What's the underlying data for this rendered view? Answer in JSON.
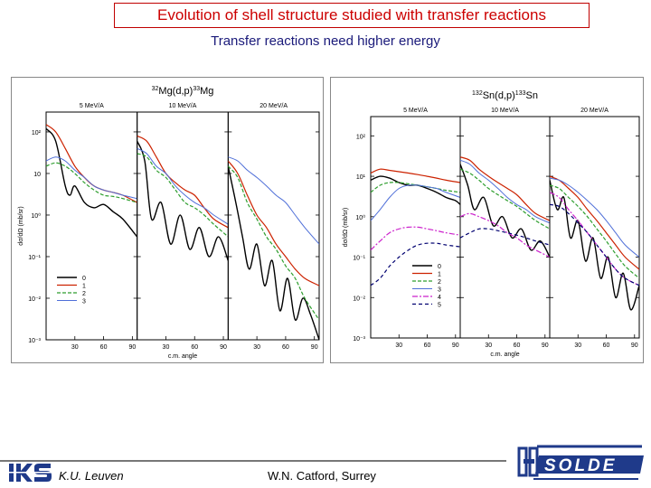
{
  "header": {
    "title": "Evolution of shell structure studied with transfer reactions",
    "subtitle": "Transfer reactions need higher energy"
  },
  "footer": {
    "institution": "K.U. Leuven",
    "author": "W.N. Catford, Surrey",
    "logo_left_text": "IKS",
    "logo_right_text": "ISOLDE"
  },
  "colors": {
    "l0": "#000000",
    "l1": "#cc2200",
    "l2": "#2e9e2e",
    "l3": "#4f6fd8",
    "l4": "#cc22cc",
    "l5": "#000070",
    "title": "#cc0000",
    "subtitle": "#1a1a7a"
  },
  "chart_data": [
    {
      "type": "line",
      "title": "32Mg(d,p)33Mg",
      "title_parts": {
        "mass_a": "32",
        "element_a": "Mg(d,p)",
        "mass_b": "33",
        "element_b": "Mg"
      },
      "xlabel": "c.m. angle",
      "ylabel": "dσ/dΩ (mb/sr)",
      "y_scale": "log",
      "ylim": [
        0.001,
        300
      ],
      "yticks": [
        "10²",
        "10",
        "10⁰",
        "10⁻¹",
        "10⁻²",
        "10⁻³"
      ],
      "yticks_values": [
        100,
        10,
        1,
        0.1,
        0.01,
        0.001
      ],
      "xlim": [
        0,
        95
      ],
      "xticks": [
        "30",
        "60",
        "90"
      ],
      "legend": {
        "placement": "lower-left",
        "entries": [
          "0",
          "1",
          "2",
          "3"
        ]
      },
      "subpanels": [
        {
          "label": "5 MeV/A",
          "series": [
            {
              "name": "0",
              "x": [
                0,
                10,
                20,
                25,
                30,
                40,
                50,
                60,
                70,
                80,
                95
              ],
              "y": [
                120,
                60,
                5,
                3,
                5,
                2,
                1.5,
                1.8,
                1.2,
                0.8,
                0.3
              ]
            },
            {
              "name": "1",
              "x": [
                0,
                10,
                20,
                30,
                40,
                50,
                60,
                70,
                80,
                95
              ],
              "y": [
                150,
                100,
                40,
                15,
                8,
                5,
                4,
                3.5,
                3,
                2
              ]
            },
            {
              "name": "2",
              "x": [
                0,
                10,
                20,
                30,
                40,
                50,
                60,
                70,
                80,
                95
              ],
              "y": [
                15,
                18,
                15,
                10,
                6,
                4,
                3,
                2.8,
                2.5,
                2
              ]
            },
            {
              "name": "3",
              "x": [
                0,
                10,
                20,
                30,
                40,
                50,
                60,
                70,
                80,
                95
              ],
              "y": [
                20,
                25,
                20,
                12,
                8,
                5,
                4,
                3.5,
                3,
                2.5
              ]
            }
          ]
        },
        {
          "label": "10 MeV/A",
          "series": [
            {
              "name": "0",
              "x": [
                0,
                8,
                15,
                25,
                35,
                45,
                55,
                65,
                75,
                85,
                95
              ],
              "y": [
                60,
                20,
                0.8,
                2,
                0.2,
                1,
                0.15,
                0.5,
                0.1,
                0.3,
                0.08
              ]
            },
            {
              "name": "1",
              "x": [
                0,
                10,
                20,
                30,
                40,
                50,
                60,
                70,
                80,
                95
              ],
              "y": [
                80,
                60,
                25,
                10,
                6,
                4,
                3,
                1.5,
                0.8,
                0.5
              ]
            },
            {
              "name": "2",
              "x": [
                0,
                10,
                20,
                30,
                40,
                50,
                60,
                70,
                80,
                95
              ],
              "y": [
                30,
                25,
                12,
                8,
                4,
                2,
                1.5,
                1,
                0.6,
                0.3
              ]
            },
            {
              "name": "3",
              "x": [
                0,
                10,
                20,
                30,
                40,
                50,
                60,
                70,
                80,
                95
              ],
              "y": [
                40,
                30,
                15,
                10,
                5,
                3,
                2,
                1.5,
                1,
                0.6
              ]
            }
          ]
        },
        {
          "label": "20 MeV/A",
          "series": [
            {
              "name": "0",
              "x": [
                0,
                8,
                15,
                22,
                30,
                38,
                46,
                54,
                62,
                70,
                78,
                86,
                95
              ],
              "y": [
                15,
                2,
                0.3,
                0.05,
                0.2,
                0.02,
                0.08,
                0.005,
                0.03,
                0.003,
                0.01,
                0.004,
                0.001
              ]
            },
            {
              "name": "1",
              "x": [
                0,
                10,
                20,
                30,
                40,
                50,
                60,
                70,
                80,
                95
              ],
              "y": [
                20,
                10,
                3,
                1,
                0.5,
                0.2,
                0.1,
                0.05,
                0.03,
                0.02
              ]
            },
            {
              "name": "2",
              "x": [
                0,
                10,
                20,
                30,
                40,
                50,
                60,
                70,
                80,
                95
              ],
              "y": [
                15,
                8,
                2,
                0.8,
                0.3,
                0.15,
                0.06,
                0.03,
                0.01,
                0.003
              ]
            },
            {
              "name": "3",
              "x": [
                0,
                10,
                20,
                30,
                40,
                50,
                60,
                70,
                80,
                95
              ],
              "y": [
                25,
                20,
                12,
                8,
                5,
                3,
                2,
                1,
                0.5,
                0.2
              ]
            }
          ]
        }
      ]
    },
    {
      "type": "line",
      "title": "132Sn(d,p)133Sn",
      "title_parts": {
        "mass_a": "132",
        "element_a": "Sn(d,p)",
        "mass_b": "133",
        "element_b": "Sn"
      },
      "xlabel": "c.m. angle",
      "ylabel": "dσ/dΩ (mb/sr)",
      "y_scale": "log",
      "ylim": [
        0.001,
        300
      ],
      "yticks": [
        "10²",
        "10¹",
        "10⁰",
        "10⁻¹",
        "10⁻²",
        "10⁻³"
      ],
      "yticks_values": [
        100,
        10,
        1,
        0.1,
        0.01,
        0.001
      ],
      "xlim": [
        0,
        95
      ],
      "xticks": [
        "30",
        "60",
        "90"
      ],
      "legend": {
        "placement": "lower-right",
        "entries": [
          "0",
          "1",
          "2",
          "3",
          "4",
          "5"
        ]
      },
      "subpanels": [
        {
          "label": "5 MeV/A",
          "series": [
            {
              "name": "0",
              "x": [
                0,
                10,
                20,
                30,
                40,
                50,
                60,
                70,
                80,
                90,
                95
              ],
              "y": [
                8,
                10,
                9,
                7,
                6,
                6,
                5,
                4,
                3,
                2.5,
                2
              ]
            },
            {
              "name": "1",
              "x": [
                0,
                10,
                20,
                30,
                40,
                50,
                60,
                70,
                80,
                95
              ],
              "y": [
                12,
                15,
                14,
                13,
                12,
                11,
                10,
                9,
                8,
                7
              ]
            },
            {
              "name": "2",
              "x": [
                0,
                10,
                20,
                30,
                40,
                50,
                60,
                70,
                80,
                95
              ],
              "y": [
                4,
                6,
                7,
                7,
                6.5,
                6,
                5.5,
                5,
                4.5,
                4
              ]
            },
            {
              "name": "3",
              "x": [
                0,
                10,
                20,
                30,
                40,
                50,
                60,
                70,
                80,
                95
              ],
              "y": [
                0.8,
                1.5,
                3,
                5,
                6,
                6,
                5.5,
                5,
                4,
                3
              ]
            },
            {
              "name": "4",
              "x": [
                0,
                10,
                20,
                30,
                40,
                50,
                60,
                70,
                80,
                95
              ],
              "y": [
                0.15,
                0.25,
                0.4,
                0.5,
                0.55,
                0.55,
                0.5,
                0.45,
                0.4,
                0.35
              ]
            },
            {
              "name": "5",
              "x": [
                0,
                10,
                20,
                30,
                40,
                50,
                60,
                70,
                80,
                95
              ],
              "y": [
                0.02,
                0.03,
                0.06,
                0.1,
                0.15,
                0.2,
                0.22,
                0.22,
                0.2,
                0.18
              ]
            }
          ]
        },
        {
          "label": "10 MeV/A",
          "series": [
            {
              "name": "0",
              "x": [
                0,
                8,
                15,
                25,
                35,
                45,
                55,
                65,
                75,
                85,
                95
              ],
              "y": [
                20,
                6,
                1.5,
                3,
                0.6,
                1,
                0.3,
                0.5,
                0.15,
                0.25,
                0.1
              ]
            },
            {
              "name": "1",
              "x": [
                0,
                10,
                20,
                30,
                40,
                50,
                60,
                70,
                80,
                95
              ],
              "y": [
                30,
                25,
                15,
                10,
                7,
                5,
                3.5,
                2,
                1.2,
                0.8
              ]
            },
            {
              "name": "2",
              "x": [
                0,
                10,
                20,
                30,
                40,
                50,
                60,
                70,
                80,
                95
              ],
              "y": [
                15,
                12,
                8,
                5,
                3.5,
                2.5,
                1.8,
                1.2,
                0.8,
                0.5
              ]
            },
            {
              "name": "3",
              "x": [
                0,
                10,
                20,
                30,
                40,
                50,
                60,
                70,
                80,
                95
              ],
              "y": [
                25,
                20,
                12,
                8,
                5,
                3,
                2,
                1.5,
                1,
                0.7
              ]
            },
            {
              "name": "4",
              "x": [
                0,
                10,
                20,
                30,
                40,
                50,
                60,
                70,
                80,
                95
              ],
              "y": [
                1,
                1.2,
                1,
                0.8,
                0.6,
                0.4,
                0.3,
                0.2,
                0.15,
                0.1
              ]
            },
            {
              "name": "5",
              "x": [
                0,
                10,
                20,
                30,
                40,
                50,
                60,
                70,
                80,
                95
              ],
              "y": [
                0.3,
                0.4,
                0.5,
                0.5,
                0.45,
                0.4,
                0.35,
                0.3,
                0.25,
                0.2
              ]
            }
          ]
        },
        {
          "label": "20 MeV/A",
          "series": [
            {
              "name": "0",
              "x": [
                0,
                8,
                15,
                22,
                30,
                38,
                46,
                54,
                62,
                70,
                78,
                86,
                95
              ],
              "y": [
                8,
                1.5,
                3,
                0.3,
                0.8,
                0.08,
                0.3,
                0.03,
                0.1,
                0.01,
                0.04,
                0.005,
                0.02
              ]
            },
            {
              "name": "1",
              "x": [
                0,
                10,
                20,
                30,
                40,
                50,
                60,
                70,
                80,
                95
              ],
              "y": [
                10,
                8,
                5,
                3,
                1.5,
                0.8,
                0.4,
                0.2,
                0.1,
                0.05
              ]
            },
            {
              "name": "2",
              "x": [
                0,
                10,
                20,
                30,
                40,
                50,
                60,
                70,
                80,
                95
              ],
              "y": [
                6,
                5,
                3,
                1.8,
                1,
                0.5,
                0.25,
                0.12,
                0.06,
                0.03
              ]
            },
            {
              "name": "3",
              "x": [
                0,
                10,
                20,
                30,
                40,
                50,
                60,
                70,
                80,
                95
              ],
              "y": [
                9,
                8,
                6,
                4,
                2.5,
                1.5,
                0.8,
                0.4,
                0.2,
                0.1
              ]
            },
            {
              "name": "4",
              "x": [
                0,
                10,
                20,
                30,
                40,
                50,
                60,
                70,
                80,
                95
              ],
              "y": [
                4,
                3,
                1.5,
                0.8,
                0.4,
                0.2,
                0.1,
                0.05,
                0.03,
                0.02
              ]
            },
            {
              "name": "5",
              "x": [
                0,
                10,
                20,
                30,
                40,
                50,
                60,
                70,
                80,
                95
              ],
              "y": [
                2,
                1.8,
                1.2,
                0.7,
                0.4,
                0.2,
                0.1,
                0.05,
                0.03,
                0.02
              ]
            }
          ]
        }
      ]
    }
  ]
}
